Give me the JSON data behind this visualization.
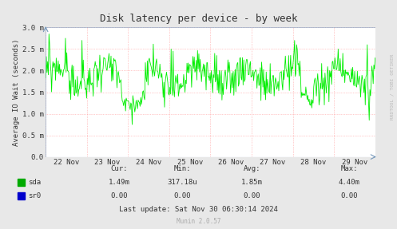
{
  "title": "Disk latency per device - by week",
  "ylabel": "Average IO Wait (seconds)",
  "ylim": [
    0.0,
    3.0
  ],
  "yticks": [
    0.0,
    0.5,
    1.0,
    1.5,
    2.0,
    2.5,
    3.0
  ],
  "ytick_labels": [
    "0.0",
    "0.5 m",
    "1.0 m",
    "1.5 m",
    "2.0 m",
    "2.5 m",
    "3.0 m"
  ],
  "xtick_labels": [
    "22 Nov",
    "23 Nov",
    "24 Nov",
    "25 Nov",
    "26 Nov",
    "27 Nov",
    "28 Nov",
    "29 Nov"
  ],
  "line_color": "#00ee00",
  "fig_bg_color": "#e8e8e8",
  "plot_bg_color": "#ffffff",
  "grid_color": "#ff9999",
  "axis_color": "#7799bb",
  "text_color": "#333333",
  "legend_sda_color": "#00aa00",
  "legend_sr0_color": "#0000cc",
  "stats_header": [
    "Cur:",
    "Min:",
    "Avg:",
    "Max:"
  ],
  "stats_sda": [
    "1.49m",
    "317.18u",
    "1.85m",
    "4.40m"
  ],
  "stats_sr0": [
    "0.00",
    "0.00",
    "0.00",
    "0.00"
  ],
  "last_update": "Last update: Sat Nov 30 06:30:14 2024",
  "munin_version": "Munin 2.0.57",
  "rrdtool_text": "RRDTOOL / TOBI OETIKER"
}
